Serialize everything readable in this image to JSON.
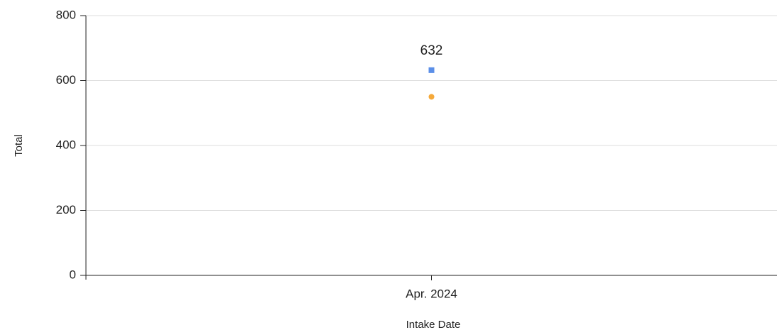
{
  "chart_data": {
    "type": "line",
    "categories": [
      "Apr. 2024"
    ],
    "series": [
      {
        "color": "#5b8fe8",
        "marker": "square",
        "show_labels": true,
        "values": [
          632
        ]
      },
      {
        "color": "#f5a93a",
        "marker": "circle",
        "show_labels": false,
        "values": [
          550
        ]
      }
    ],
    "xlabel": "Intake Date",
    "ylabel": "Total",
    "ylim": [
      0,
      800
    ],
    "yticks": [
      0,
      200,
      400,
      600,
      800
    ],
    "grid": true
  }
}
